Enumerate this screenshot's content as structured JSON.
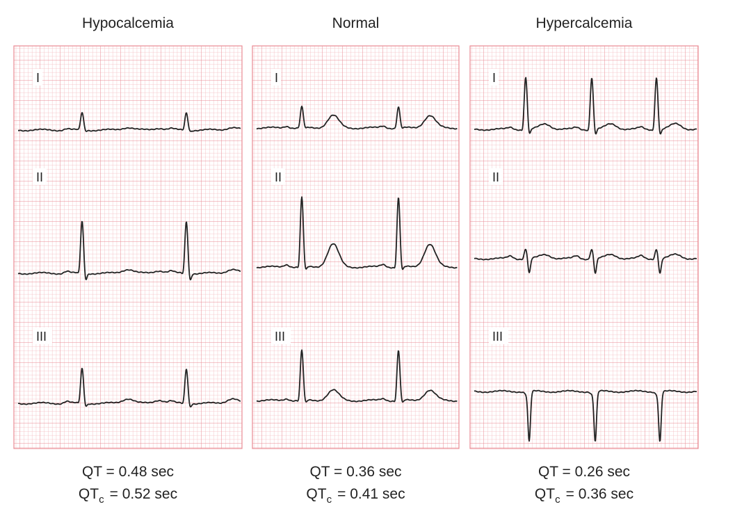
{
  "leads": [
    "I",
    "II",
    "III"
  ],
  "panels": [
    {
      "title": "Hypocalcemia",
      "qt": "QT = 0.48 sec",
      "qtc": {
        "main": "QT",
        "sub": "c",
        "rest": "= 0.52 sec"
      }
    },
    {
      "title": "Normal",
      "qt": "QT = 0.36 sec",
      "qtc": {
        "main": "QT",
        "sub": "c",
        "rest": "= 0.41 sec"
      }
    },
    {
      "title": "Hypercalcemia",
      "qt": "QT = 0.26 sec",
      "qtc": {
        "main": "QT",
        "sub": "c",
        "rest": "= 0.36 sec"
      }
    }
  ]
}
